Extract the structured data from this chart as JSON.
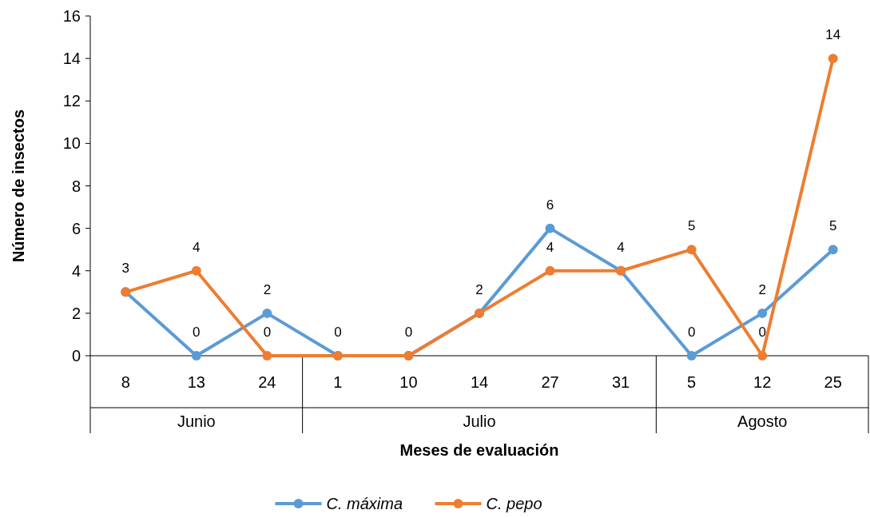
{
  "chart_data": {
    "type": "line",
    "xlabel": "Meses de evaluación",
    "ylabel": "Número de insectos",
    "categories": [
      "8",
      "13",
      "24",
      "1",
      "10",
      "14",
      "27",
      "31",
      "5",
      "12",
      "25"
    ],
    "series": [
      {
        "name": "C. máxima",
        "color": "#5b9bd5",
        "values": [
          3,
          0,
          2,
          0,
          0,
          2,
          6,
          4,
          0,
          2,
          5
        ],
        "value_labels": [
          "3",
          "0",
          "2",
          "0",
          "0",
          "2",
          "6",
          "4",
          "0",
          "2",
          "5"
        ]
      },
      {
        "name": "C. pepo",
        "color": "#ed7d31",
        "values": [
          3,
          4,
          0,
          0,
          0,
          2,
          4,
          4,
          5,
          0,
          14
        ],
        "value_labels": [
          null,
          "4",
          "0",
          null,
          null,
          null,
          "4",
          null,
          "5",
          "0",
          "14"
        ]
      }
    ],
    "annotations": [
      "Junio",
      "Julio",
      "Agosto"
    ],
    "ylim": [
      0,
      16
    ],
    "yticks": [
      0,
      2,
      4,
      6,
      8,
      10,
      12,
      14,
      16
    ],
    "grid": false,
    "legend": "bottom",
    "marker": "circle",
    "line_style": "solid"
  }
}
